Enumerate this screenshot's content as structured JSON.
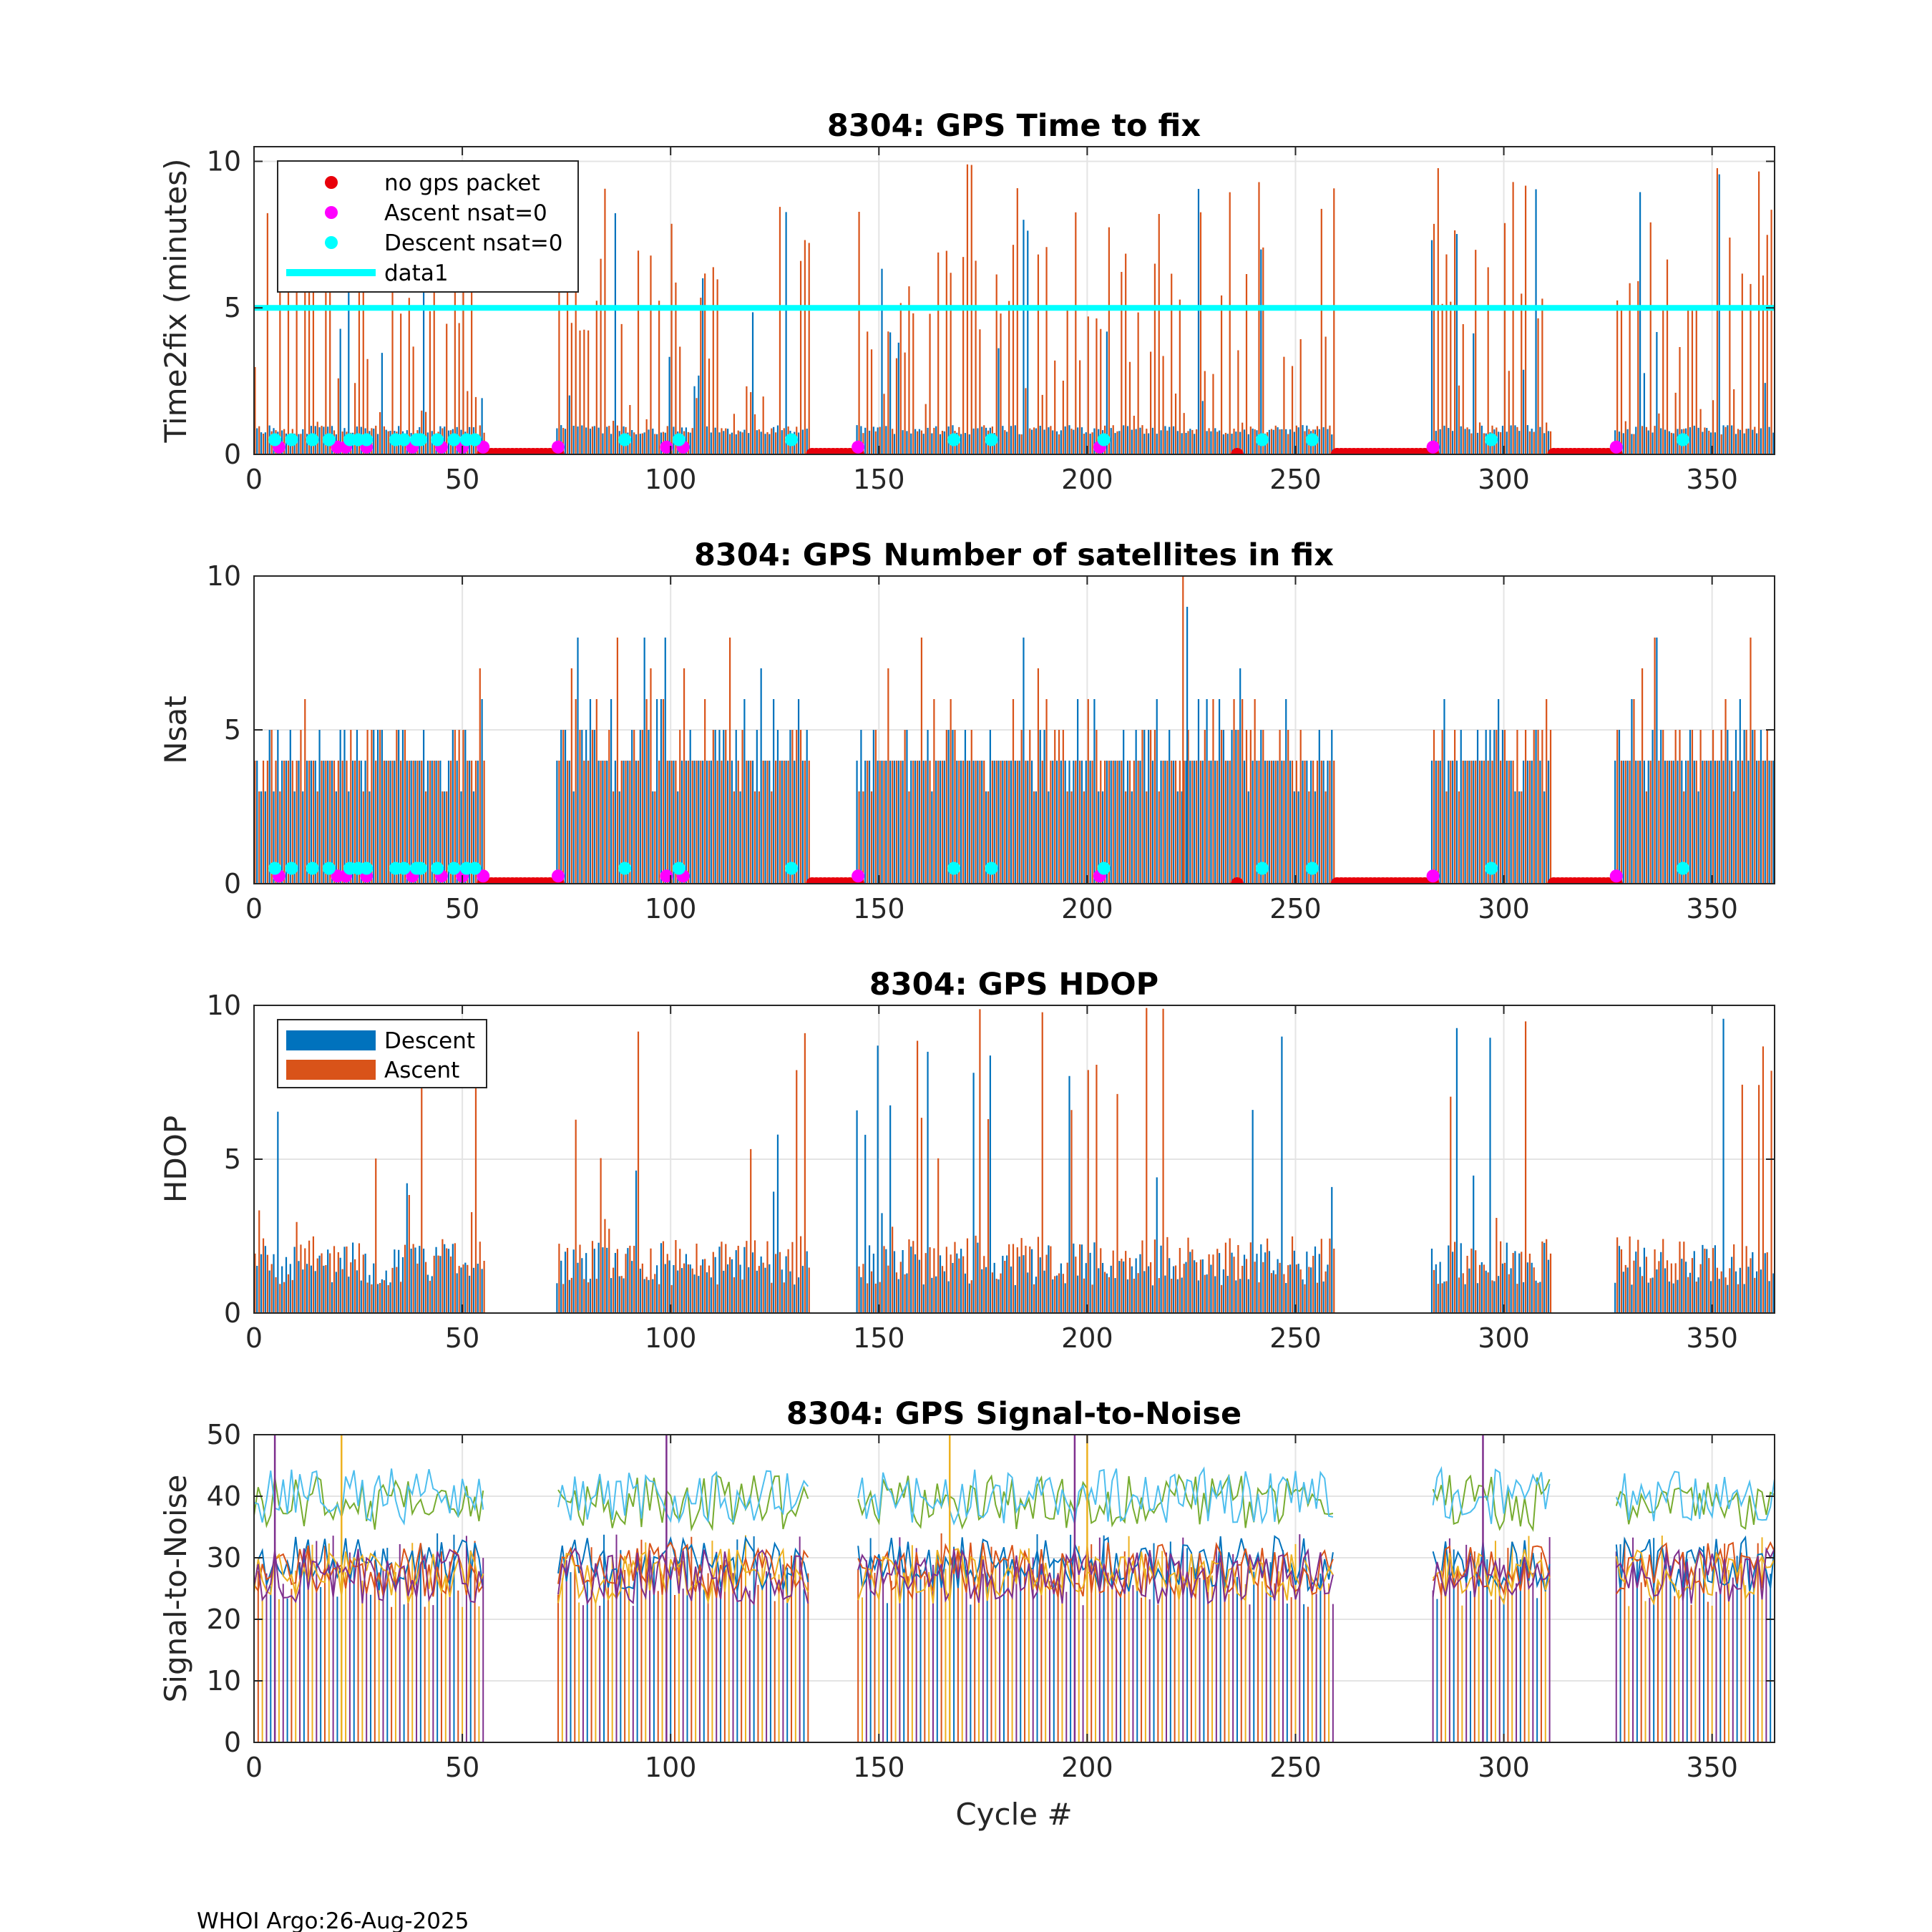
{
  "chart_data": [
    {
      "id": "ttf",
      "type": "bar",
      "title": "8304: GPS Time to fix",
      "xlabel": "",
      "ylabel": "Time2fix (minutes)",
      "xlim": [
        0,
        365
      ],
      "ylim": [
        0,
        10.5
      ],
      "xticks": [
        "0",
        "50",
        "100",
        "150",
        "200",
        "250",
        "300",
        "350"
      ],
      "yticks": [
        "0",
        "5",
        "10"
      ],
      "grid": true,
      "legend_position": "top-left",
      "legend": [
        {
          "label": "no gps packet",
          "kind": "dot",
          "color": "#e8000b"
        },
        {
          "label": "Ascent nsat=0",
          "kind": "dot",
          "color": "#ff00ff"
        },
        {
          "label": "Descent nsat=0",
          "kind": "dot",
          "color": "#00ffff"
        },
        {
          "label": "data1",
          "kind": "line",
          "color": "#00ffff"
        }
      ],
      "reference_line": {
        "y": 5,
        "color": "#00ffff"
      },
      "no_packet_cycles": [
        [
          55,
          73
        ],
        [
          134,
          145
        ],
        [
          260,
          283
        ],
        [
          312,
          327
        ],
        [
          236,
          236
        ]
      ],
      "ascent_nsat0_cycles": [
        6,
        20,
        22,
        27,
        38,
        45,
        50,
        55,
        73,
        99,
        103,
        145,
        203,
        283,
        327
      ],
      "descent_nsat0_cycles": [
        5,
        9,
        14,
        18,
        23,
        25,
        27,
        34,
        36,
        39,
        40,
        44,
        48,
        51,
        53,
        89,
        102,
        129,
        168,
        177,
        204,
        242,
        254,
        297,
        343
      ],
      "active_ranges": [
        [
          0,
          55
        ],
        [
          73,
          133
        ],
        [
          145,
          259
        ],
        [
          283,
          311
        ],
        [
          327,
          365
        ]
      ],
      "descent_base": 0.8,
      "ascent_base": 0.8,
      "descent_peak": 10,
      "ascent_peak": 10
    },
    {
      "id": "nsat",
      "type": "bar",
      "title": "8304: GPS Number of satellites in fix",
      "xlabel": "",
      "ylabel": "Nsat",
      "xlim": [
        0,
        365
      ],
      "ylim": [
        0,
        10
      ],
      "xticks": [
        "0",
        "50",
        "100",
        "150",
        "200",
        "250",
        "300",
        "350"
      ],
      "yticks": [
        "0",
        "5",
        "10"
      ],
      "grid": true,
      "no_packet_cycles": [
        [
          55,
          73
        ],
        [
          134,
          145
        ],
        [
          260,
          283
        ],
        [
          312,
          327
        ],
        [
          236,
          236
        ]
      ],
      "ascent_nsat0_cycles": [
        6,
        20,
        22,
        27,
        38,
        45,
        50,
        55,
        73,
        99,
        103,
        145,
        203,
        283,
        327
      ],
      "descent_nsat0_cycles": [
        5,
        9,
        14,
        18,
        23,
        25,
        27,
        34,
        36,
        39,
        40,
        44,
        48,
        51,
        53,
        89,
        102,
        129,
        168,
        177,
        204,
        242,
        254,
        297,
        343
      ],
      "active_ranges": [
        [
          0,
          55
        ],
        [
          73,
          133
        ],
        [
          145,
          259
        ],
        [
          283,
          311
        ],
        [
          327,
          365
        ]
      ],
      "descent_base": 4,
      "ascent_base": 4,
      "descent_peak": 9,
      "ascent_peak": 10
    },
    {
      "id": "hdop",
      "type": "bar",
      "title": "8304: GPS HDOP",
      "xlabel": "",
      "ylabel": "HDOP",
      "xlim": [
        0,
        365
      ],
      "ylim": [
        0,
        10
      ],
      "xticks": [
        "0",
        "50",
        "100",
        "150",
        "200",
        "250",
        "300",
        "350"
      ],
      "yticks": [
        "0",
        "5",
        "10"
      ],
      "grid": true,
      "legend_position": "top-left",
      "legend": [
        {
          "label": "Descent",
          "kind": "bar",
          "color": "#0072bd"
        },
        {
          "label": "Ascent",
          "kind": "bar",
          "color": "#d95319"
        }
      ],
      "active_ranges": [
        [
          0,
          55
        ],
        [
          73,
          133
        ],
        [
          145,
          259
        ],
        [
          283,
          311
        ],
        [
          327,
          365
        ]
      ],
      "descent_base": 1.3,
      "ascent_base": 1.3,
      "descent_peak": 10,
      "ascent_peak": 10
    },
    {
      "id": "snr",
      "type": "line",
      "title": "8304: GPS Signal-to-Noise",
      "xlabel": "Cycle #",
      "ylabel": "Signal-to-Noise",
      "xlim": [
        0,
        365
      ],
      "ylim": [
        0,
        50
      ],
      "xticks": [
        "0",
        "50",
        "100",
        "150",
        "200",
        "250",
        "300",
        "350"
      ],
      "yticks": [
        "0",
        "10",
        "20",
        "30",
        "40",
        "50"
      ],
      "grid": true,
      "active_ranges": [
        [
          0,
          55
        ],
        [
          73,
          133
        ],
        [
          145,
          259
        ],
        [
          283,
          311
        ],
        [
          327,
          365
        ]
      ],
      "series": [
        {
          "name": "series-1",
          "color": "#77ac30",
          "level": 39
        },
        {
          "name": "series-2",
          "color": "#4dbeee",
          "level": 40
        },
        {
          "name": "series-3",
          "color": "#0072bd",
          "level": 29
        },
        {
          "name": "series-4",
          "color": "#d95319",
          "level": 28
        },
        {
          "name": "series-5",
          "color": "#edb120",
          "level": 27
        },
        {
          "name": "series-6",
          "color": "#7e2f8e",
          "level": 27
        }
      ]
    }
  ],
  "footer": "WHOI Argo:26-Aug-2025"
}
